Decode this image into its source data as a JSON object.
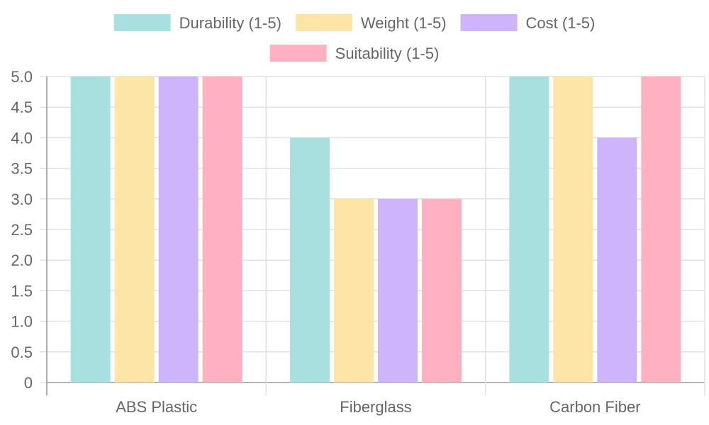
{
  "chart_data": {
    "type": "bar",
    "title": "",
    "xlabel": "",
    "ylabel": "",
    "categories": [
      "ABS Plastic",
      "Fiberglass",
      "Carbon Fiber"
    ],
    "series": [
      {
        "name": "Durability (1-5)",
        "values": [
          5,
          4,
          5
        ],
        "color": "#a8e0e0"
      },
      {
        "name": "Weight (1-5)",
        "values": [
          5,
          3,
          5
        ],
        "color": "#fde5a8"
      },
      {
        "name": "Cost (1-5)",
        "values": [
          5,
          3,
          4
        ],
        "color": "#cdb4fb"
      },
      {
        "name": "Suitability (1-5)",
        "values": [
          5,
          3,
          5
        ],
        "color": "#ffb0c1"
      }
    ],
    "ylim": [
      0,
      5
    ],
    "yticks": [
      "0",
      "0.5",
      "1.0",
      "1.5",
      "2.0",
      "2.5",
      "3.0",
      "3.5",
      "4.0",
      "4.5",
      "5.0"
    ],
    "grid": true,
    "legend_position": "top"
  }
}
